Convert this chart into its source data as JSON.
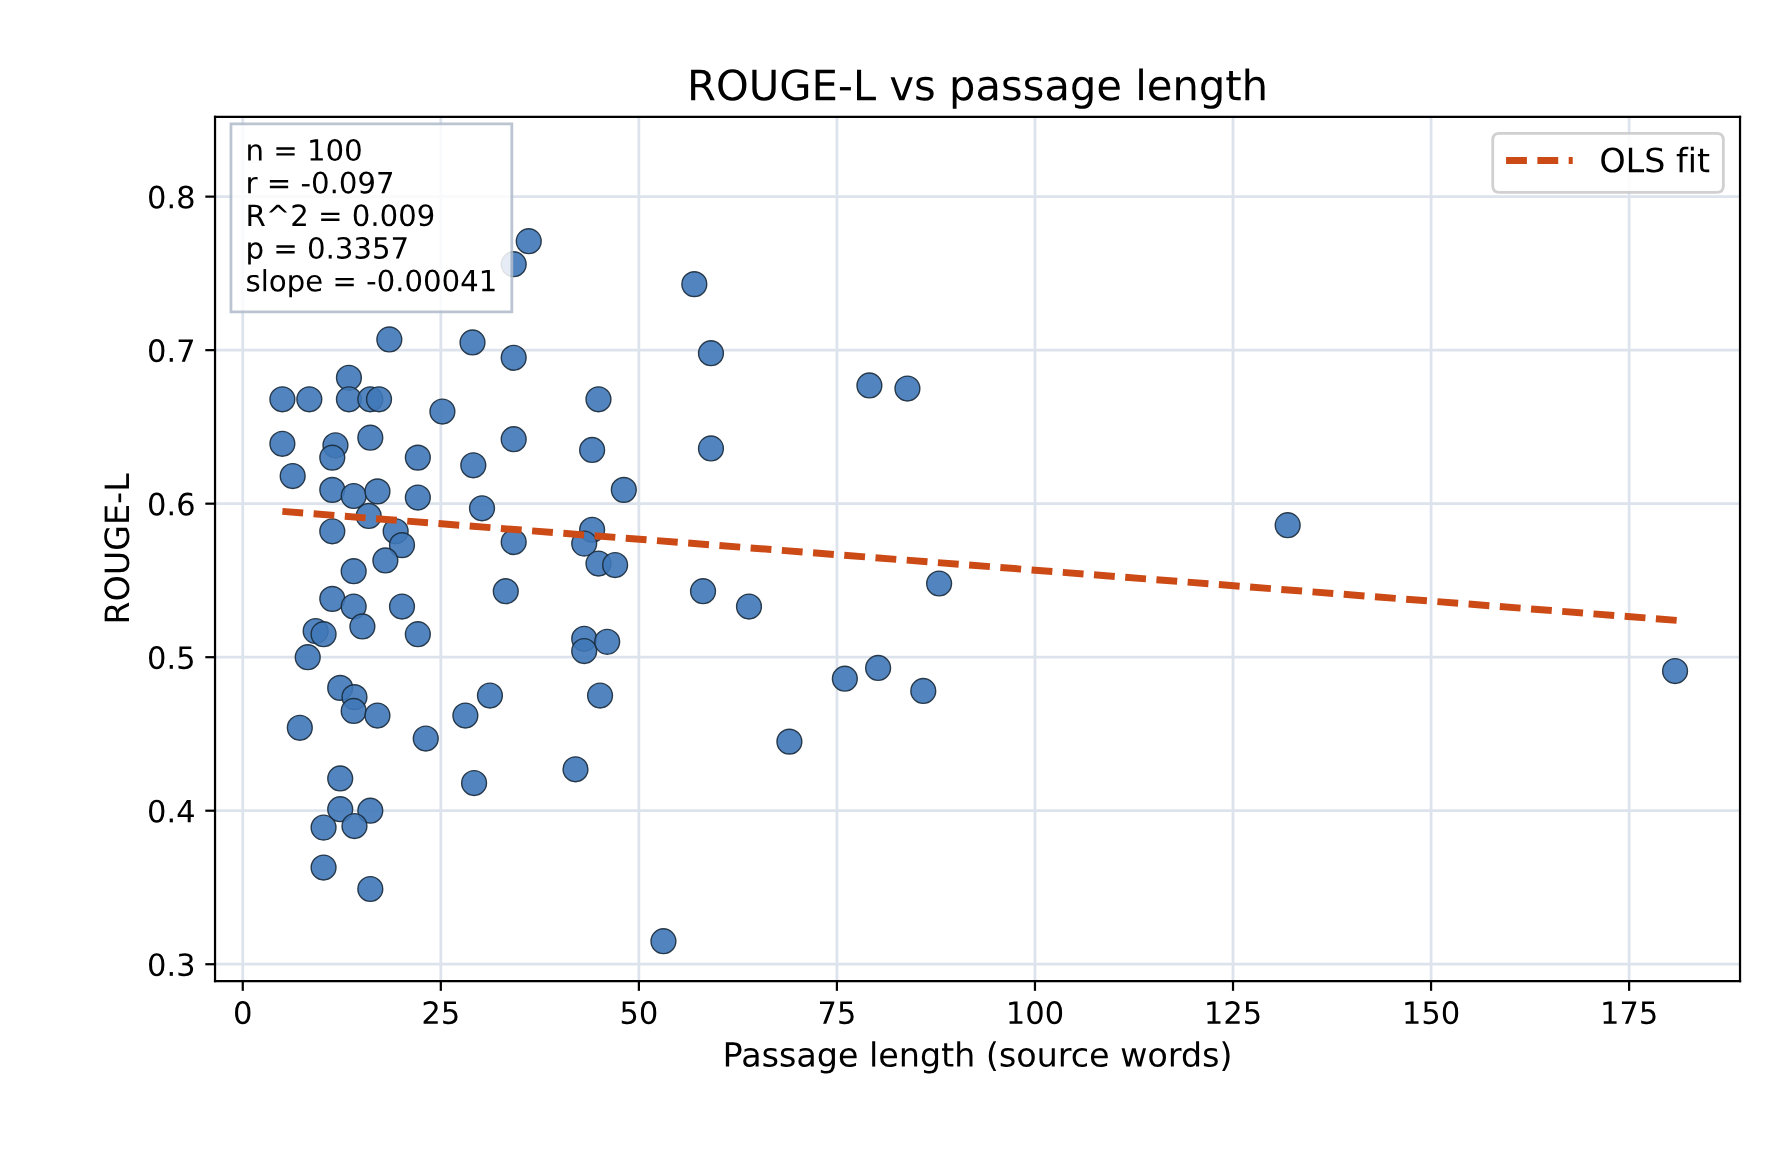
{
  "chart_data": {
    "type": "scatter",
    "title": "ROUGE-L vs passage length",
    "xlabel": "Passage length (source words)",
    "ylabel": "ROUGE-L",
    "xlim": [
      -3.5,
      189
    ],
    "ylim": [
      0.289,
      0.852
    ],
    "xticks": [
      0,
      25,
      50,
      75,
      100,
      125,
      150,
      175
    ],
    "yticks": [
      0.3,
      0.4,
      0.5,
      0.6,
      0.7,
      0.8
    ],
    "grid": true,
    "legend": "top right",
    "annotations": [
      "n = 100",
      "r = -0.097",
      "R^2 = 0.009",
      "p = 0.3357",
      "slope = -0.00041"
    ],
    "series": [
      {
        "marker": "circle",
        "color": "#3f78b8",
        "x": [
          5.0,
          8.4,
          13.4,
          13.4,
          16.1,
          17.2,
          25.2,
          44.9,
          5.0,
          11.7,
          11.3,
          16.1,
          22.1,
          29.1,
          34.2,
          44.1,
          48.1,
          6.3,
          11.3,
          14.0,
          17.0,
          22.1,
          30.2,
          11.3,
          15.9,
          19.3,
          20.1,
          34.2,
          44.1,
          43.1,
          44.9,
          47.0,
          14.0,
          18.0,
          33.2,
          11.3,
          14.0,
          20.1,
          15.1,
          9.2,
          10.2,
          22.1,
          43.1,
          43.1,
          46.0,
          8.2,
          12.3,
          14.1,
          14.0,
          17.0,
          7.2,
          23.1,
          28.1,
          31.2,
          45.1,
          12.3,
          29.2,
          42.0,
          12.3,
          16.1,
          10.2,
          14.1,
          10.2,
          16.1,
          53.1,
          57.0,
          59.1,
          59.1,
          58.1,
          63.9,
          79.1,
          83.9,
          87.9,
          76.0,
          80.2,
          85.9,
          69.0,
          131.9,
          180.8,
          34.2,
          36.1,
          34.2,
          18.5,
          29.0
        ],
        "values": [
          0.668,
          0.668,
          0.682,
          0.668,
          0.668,
          0.668,
          0.66,
          0.668,
          0.639,
          0.638,
          0.63,
          0.643,
          0.63,
          0.625,
          0.642,
          0.635,
          0.609,
          0.618,
          0.609,
          0.605,
          0.608,
          0.604,
          0.597,
          0.582,
          0.592,
          0.582,
          0.573,
          0.575,
          0.583,
          0.574,
          0.561,
          0.56,
          0.556,
          0.563,
          0.543,
          0.538,
          0.533,
          0.533,
          0.52,
          0.517,
          0.515,
          0.515,
          0.512,
          0.504,
          0.51,
          0.5,
          0.48,
          0.474,
          0.465,
          0.462,
          0.454,
          0.447,
          0.462,
          0.475,
          0.475,
          0.421,
          0.418,
          0.427,
          0.401,
          0.4,
          0.389,
          0.39,
          0.363,
          0.349,
          0.315,
          0.743,
          0.698,
          0.636,
          0.543,
          0.533,
          0.677,
          0.675,
          0.548,
          0.486,
          0.493,
          0.478,
          0.445,
          0.586,
          0.491,
          0.695,
          0.771,
          0.756,
          0.707,
          0.705
        ]
      },
      {
        "type": "line",
        "name": "OLS fit",
        "color": "#cc4a16",
        "line_style": "dashed",
        "x": [
          5,
          181
        ],
        "values": [
          0.595,
          0.524
        ]
      }
    ]
  }
}
